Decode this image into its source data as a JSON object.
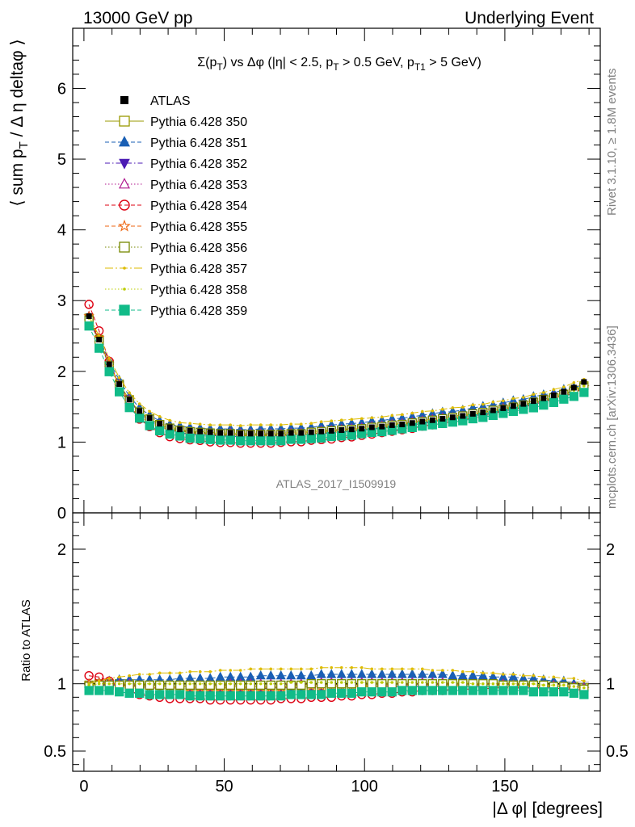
{
  "header": {
    "left": "13000 GeV pp",
    "right": "Underlying Event"
  },
  "side": {
    "rivet": "Rivet 3.1.10, ≥ 1.8M events",
    "mcplots": "mcplots.cern.ch [arXiv:1306.3436]"
  },
  "chart_data": [
    {
      "type": "scatter",
      "panel": "main",
      "title": "Σ(p_T) vs Δφ (|η| < 2.5, p_T > 0.5 GeV, p_T1 > 5 GeV)",
      "title_parts": {
        "a": "Σ(p",
        "b": "T",
        "c": ") vs Δφ (|η| < 2.5, p",
        "d": "T",
        "e": " > 0.5 GeV, p",
        "f": "T1",
        "g": " > 5 GeV)"
      },
      "ylabel_parts": {
        "a": "⟨ sum p",
        "b": "T",
        "c": " / Δ η deltaφ ⟩"
      },
      "xlabel": "|Δ φ| [degrees]",
      "watermark": "ATLAS_2017_I1509919",
      "xlim": [
        -4,
        184
      ],
      "ylim": [
        0,
        6.85
      ],
      "yticks": [
        0,
        1,
        2,
        3,
        4,
        5,
        6
      ],
      "xticks": [
        0,
        50,
        100,
        150
      ],
      "legend_position": "top-left",
      "reference": {
        "name": "ATLAS",
        "color": "#000000",
        "x": [
          1.8,
          5.4,
          9.0,
          12.6,
          16.2,
          19.8,
          23.4,
          27.0,
          30.6,
          34.2,
          37.8,
          41.4,
          45.0,
          48.6,
          52.2,
          55.8,
          59.4,
          63.0,
          66.6,
          70.2,
          73.8,
          77.4,
          81.0,
          84.6,
          88.2,
          91.8,
          95.4,
          99.0,
          102.6,
          106.2,
          109.8,
          113.4,
          117.0,
          120.6,
          124.2,
          127.8,
          131.4,
          135.0,
          138.6,
          142.2,
          145.8,
          149.4,
          153.0,
          156.6,
          160.2,
          163.8,
          167.4,
          171.0,
          174.6,
          178.2
        ],
        "y": [
          2.78,
          2.45,
          2.1,
          1.82,
          1.6,
          1.44,
          1.34,
          1.26,
          1.21,
          1.18,
          1.16,
          1.15,
          1.14,
          1.13,
          1.13,
          1.12,
          1.12,
          1.12,
          1.12,
          1.12,
          1.13,
          1.13,
          1.14,
          1.15,
          1.16,
          1.17,
          1.18,
          1.19,
          1.21,
          1.22,
          1.24,
          1.25,
          1.27,
          1.29,
          1.31,
          1.33,
          1.35,
          1.37,
          1.4,
          1.42,
          1.45,
          1.48,
          1.51,
          1.54,
          1.58,
          1.62,
          1.66,
          1.71,
          1.77,
          1.85
        ]
      },
      "series": [
        {
          "name": "Pythia 6.428 350",
          "color": "#999900",
          "marker": "open-square",
          "line": "solid",
          "ratio": [
            0.99,
            1.0,
            1.0,
            1.0,
            1.0,
            0.99,
            0.99,
            0.99,
            0.98,
            0.98,
            0.98,
            0.98,
            0.98,
            0.98,
            0.98,
            0.98,
            0.98,
            0.98,
            0.98,
            0.98,
            0.98,
            0.98,
            0.98,
            0.98,
            0.98,
            0.98,
            0.98,
            0.98,
            0.98,
            0.98,
            0.98,
            0.98,
            0.98,
            0.98,
            0.98,
            0.98,
            0.98,
            0.98,
            0.98,
            0.98,
            0.98,
            0.98,
            0.98,
            0.98,
            0.98,
            0.98,
            0.98,
            0.98,
            0.98,
            0.97
          ]
        },
        {
          "name": "Pythia 6.428 351",
          "color": "#1a5fb4",
          "marker": "filled-triangle-up",
          "line": "dashed",
          "ratio": [
            1.0,
            1.01,
            1.02,
            1.03,
            1.03,
            1.03,
            1.03,
            1.03,
            1.03,
            1.04,
            1.04,
            1.04,
            1.04,
            1.05,
            1.05,
            1.05,
            1.05,
            1.06,
            1.06,
            1.06,
            1.06,
            1.06,
            1.06,
            1.07,
            1.07,
            1.07,
            1.07,
            1.07,
            1.07,
            1.07,
            1.07,
            1.07,
            1.07,
            1.07,
            1.07,
            1.07,
            1.06,
            1.06,
            1.06,
            1.06,
            1.05,
            1.05,
            1.05,
            1.04,
            1.04,
            1.03,
            1.02,
            1.02,
            1.0,
            0.98
          ]
        },
        {
          "name": "Pythia 6.428 352",
          "color": "#4b1ab4",
          "marker": "filled-triangle-down",
          "line": "dashdot",
          "ratio": [
            0.98,
            0.99,
            0.99,
            0.99,
            0.99,
            0.98,
            0.97,
            0.97,
            0.96,
            0.96,
            0.96,
            0.96,
            0.96,
            0.96,
            0.96,
            0.96,
            0.96,
            0.96,
            0.97,
            0.97,
            0.97,
            0.97,
            0.97,
            0.97,
            0.98,
            0.98,
            0.98,
            0.98,
            0.98,
            0.98,
            0.98,
            0.98,
            0.98,
            0.98,
            0.98,
            0.98,
            0.98,
            0.98,
            0.98,
            0.98,
            0.98,
            0.97,
            0.97,
            0.97,
            0.97,
            0.97,
            0.97,
            0.96,
            0.96,
            0.95
          ]
        },
        {
          "name": "Pythia 6.428 353",
          "color": "#b01a8f",
          "marker": "open-triangle-up",
          "line": "dotted",
          "ratio": [
            1.0,
            1.01,
            1.01,
            1.0,
            1.0,
            0.99,
            0.99,
            0.99,
            0.99,
            0.99,
            0.99,
            0.99,
            0.99,
            0.99,
            1.0,
            1.0,
            1.0,
            1.0,
            1.0,
            1.0,
            1.0,
            1.0,
            1.0,
            1.01,
            1.01,
            1.01,
            1.01,
            1.01,
            1.01,
            1.01,
            1.01,
            1.01,
            1.01,
            1.01,
            1.01,
            1.01,
            1.0,
            1.0,
            1.0,
            1.0,
            1.0,
            1.0,
            0.99,
            0.99,
            0.99,
            0.99,
            0.99,
            0.98,
            0.98,
            0.97
          ]
        },
        {
          "name": "Pythia 6.428 354",
          "color": "#dd0011",
          "marker": "open-circle",
          "line": "dashed",
          "ratio": [
            1.06,
            1.05,
            1.02,
            0.98,
            0.95,
            0.92,
            0.91,
            0.9,
            0.89,
            0.89,
            0.89,
            0.89,
            0.88,
            0.88,
            0.88,
            0.88,
            0.88,
            0.88,
            0.88,
            0.89,
            0.89,
            0.89,
            0.9,
            0.9,
            0.9,
            0.91,
            0.91,
            0.92,
            0.92,
            0.93,
            0.93,
            0.94,
            0.94,
            0.95,
            0.95,
            0.95,
            0.96,
            0.96,
            0.96,
            0.96,
            0.97,
            0.97,
            0.97,
            0.97,
            0.97,
            0.97,
            0.97,
            0.96,
            0.96,
            0.95
          ]
        },
        {
          "name": "Pythia 6.428 355",
          "color": "#ee6611",
          "marker": "open-star",
          "line": "dashed",
          "ratio": [
            1.0,
            1.01,
            1.0,
            0.99,
            0.98,
            0.98,
            0.97,
            0.97,
            0.97,
            0.97,
            0.97,
            0.97,
            0.97,
            0.97,
            0.97,
            0.97,
            0.97,
            0.97,
            0.97,
            0.97,
            0.98,
            0.98,
            0.98,
            0.98,
            0.98,
            0.98,
            0.98,
            0.98,
            0.99,
            0.99,
            0.99,
            0.99,
            0.99,
            0.99,
            0.99,
            0.99,
            0.99,
            0.99,
            0.99,
            0.99,
            0.99,
            0.99,
            0.99,
            0.98,
            0.98,
            0.98,
            0.98,
            0.97,
            0.97,
            0.96
          ]
        },
        {
          "name": "Pythia 6.428 356",
          "color": "#778800",
          "marker": "open-square",
          "line": "dotted",
          "ratio": [
            0.98,
            0.99,
            0.99,
            0.99,
            0.99,
            0.99,
            0.99,
            0.99,
            0.99,
            0.99,
            0.99,
            0.99,
            0.99,
            0.99,
            0.99,
            0.99,
            0.99,
            0.99,
            0.99,
            0.99,
            0.99,
            0.99,
            1.0,
            1.0,
            1.0,
            1.0,
            1.0,
            1.0,
            1.0,
            1.0,
            1.0,
            1.0,
            1.0,
            1.0,
            1.0,
            1.0,
            1.0,
            1.0,
            1.0,
            1.0,
            1.0,
            0.99,
            0.99,
            0.99,
            0.99,
            0.99,
            0.98,
            0.98,
            0.97,
            0.96
          ]
        },
        {
          "name": "Pythia 6.428 357",
          "color": "#ddbb00",
          "marker": "small-dot",
          "line": "longdashdot",
          "ratio": [
            1.0,
            1.02,
            1.04,
            1.05,
            1.06,
            1.07,
            1.07,
            1.08,
            1.08,
            1.08,
            1.09,
            1.09,
            1.09,
            1.1,
            1.1,
            1.1,
            1.11,
            1.11,
            1.11,
            1.11,
            1.11,
            1.11,
            1.11,
            1.12,
            1.12,
            1.12,
            1.12,
            1.12,
            1.11,
            1.11,
            1.11,
            1.11,
            1.11,
            1.11,
            1.1,
            1.1,
            1.1,
            1.09,
            1.09,
            1.08,
            1.08,
            1.07,
            1.07,
            1.06,
            1.06,
            1.05,
            1.05,
            1.04,
            1.04,
            1.02
          ]
        },
        {
          "name": "Pythia 6.428 358",
          "color": "#bbcc00",
          "marker": "small-dot",
          "line": "dotted",
          "ratio": [
            0.99,
            1.0,
            1.0,
            1.0,
            1.0,
            1.0,
            1.0,
            1.0,
            1.0,
            1.0,
            1.0,
            1.0,
            1.0,
            1.0,
            1.0,
            1.0,
            1.0,
            1.0,
            1.0,
            1.0,
            1.01,
            1.01,
            1.01,
            1.01,
            1.01,
            1.01,
            1.01,
            1.01,
            1.01,
            1.01,
            1.01,
            1.01,
            1.01,
            1.01,
            1.01,
            1.01,
            1.01,
            1.01,
            1.0,
            1.0,
            1.0,
            1.0,
            1.0,
            1.0,
            1.0,
            0.99,
            0.99,
            0.99,
            0.98,
            0.97
          ]
        },
        {
          "name": "Pythia 6.428 359",
          "color": "#11bb88",
          "marker": "filled-square",
          "line": "dashed",
          "ratio": [
            0.95,
            0.95,
            0.95,
            0.94,
            0.93,
            0.93,
            0.92,
            0.92,
            0.92,
            0.92,
            0.91,
            0.91,
            0.91,
            0.91,
            0.91,
            0.91,
            0.91,
            0.91,
            0.91,
            0.91,
            0.92,
            0.92,
            0.92,
            0.92,
            0.93,
            0.93,
            0.93,
            0.94,
            0.94,
            0.94,
            0.94,
            0.95,
            0.95,
            0.95,
            0.95,
            0.95,
            0.95,
            0.95,
            0.95,
            0.95,
            0.95,
            0.95,
            0.95,
            0.95,
            0.94,
            0.94,
            0.94,
            0.94,
            0.93,
            0.92
          ]
        }
      ]
    },
    {
      "type": "scatter",
      "panel": "ratio",
      "ylabel": "Ratio to ATLAS",
      "xlabel": "|Δ φ| [degrees]",
      "xlim": [
        -4,
        184
      ],
      "ylim": [
        0.35,
        2.27
      ],
      "yticks": [
        0.5,
        1,
        2
      ],
      "ytick_labels": [
        "0.5",
        "1",
        "2"
      ],
      "xticks": [
        0,
        50,
        100,
        150
      ],
      "xtick_labels": [
        "0",
        "50",
        "100",
        "150"
      ],
      "reference_line": 1
    }
  ]
}
